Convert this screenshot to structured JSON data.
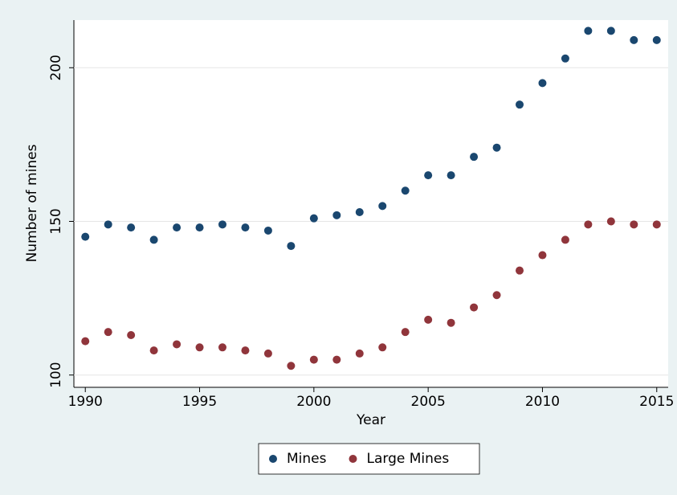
{
  "chart_data": {
    "type": "scatter",
    "x_label": "Year",
    "y_label": "Number of mines",
    "x": [
      1990,
      1991,
      1992,
      1993,
      1994,
      1995,
      1996,
      1997,
      1998,
      1999,
      2000,
      2001,
      2002,
      2003,
      2004,
      2005,
      2006,
      2007,
      2008,
      2009,
      2010,
      2011,
      2012,
      2013,
      2014,
      2015
    ],
    "series": [
      {
        "name": "Mines",
        "color": "#1a476f",
        "values": [
          145,
          149,
          148,
          144,
          148,
          148,
          149,
          148,
          147,
          142,
          151,
          152,
          153,
          155,
          160,
          165,
          165,
          171,
          174,
          188,
          195,
          203,
          212,
          212,
          209,
          209
        ]
      },
      {
        "name": "Large Mines",
        "color": "#90353b",
        "values": [
          111,
          114,
          113,
          108,
          110,
          109,
          109,
          108,
          107,
          103,
          105,
          105,
          107,
          109,
          114,
          118,
          117,
          122,
          126,
          134,
          139,
          144,
          149,
          150,
          149,
          149
        ]
      }
    ],
    "xlim": [
      1989.5,
      2015.5
    ],
    "xticks": [
      1990,
      1995,
      2000,
      2005,
      2010,
      2015
    ],
    "ylim": [
      96,
      215.5
    ],
    "yticks": [
      100,
      150,
      200
    ],
    "grid": true,
    "legend": "bottom"
  }
}
